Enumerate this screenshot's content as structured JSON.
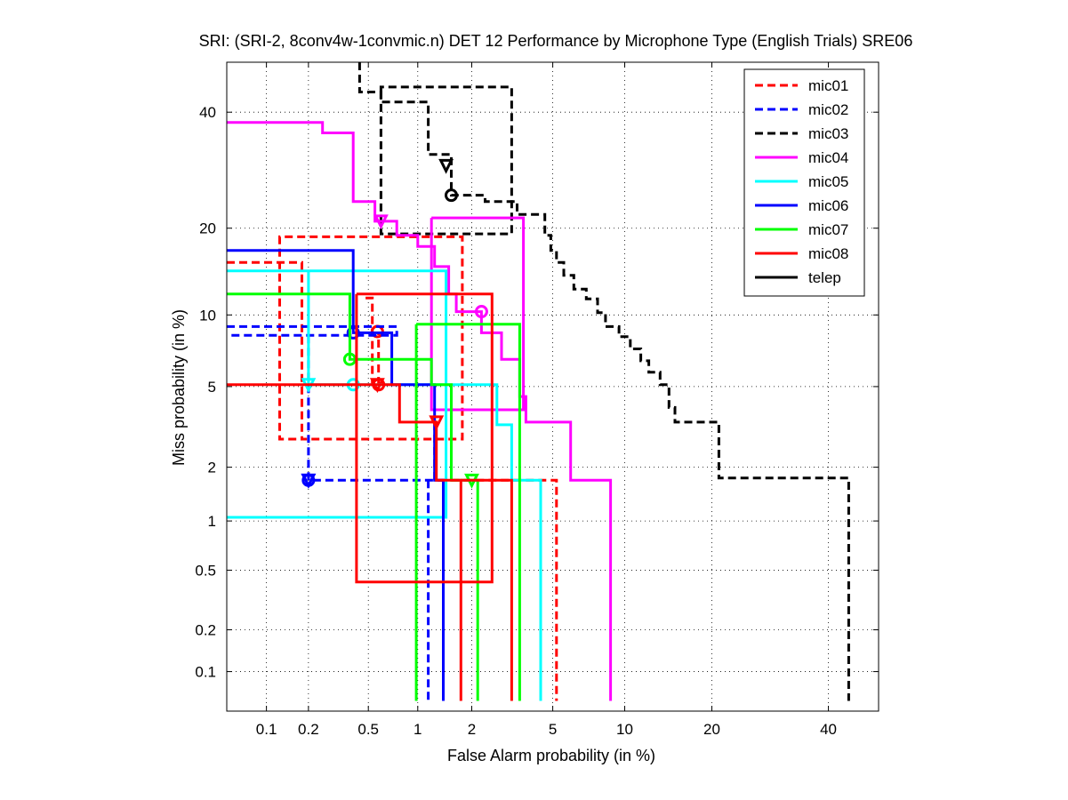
{
  "chart_data": {
    "type": "line",
    "title": "SRI: (SRI-2, 8conv4w-1convmic.n) DET 12 Performance by Microphone Type (English Trials) SRE06",
    "xlabel": "False Alarm probability (in %)",
    "ylabel": "Miss probability (in %)",
    "x_scale": "probit",
    "y_scale": "probit",
    "xlim": [
      0.05,
      50
    ],
    "ylim": [
      0.05,
      50
    ],
    "x_ticks": [
      0.1,
      0.2,
      0.5,
      1,
      2,
      5,
      10,
      20,
      40
    ],
    "x_tick_labels": [
      "0.1",
      "0.2",
      "0.5",
      "1",
      "2",
      "5",
      "10",
      "20",
      "40"
    ],
    "y_ticks": [
      0.1,
      0.2,
      0.5,
      1,
      2,
      5,
      10,
      20,
      40
    ],
    "y_tick_labels": [
      "0.1",
      "0.2",
      "0.5",
      "1",
      "2",
      "5",
      "10",
      "20",
      "40"
    ],
    "grid": true,
    "legend_position": "top-right",
    "series": [
      {
        "name": "mic01",
        "color": "#ff0000",
        "style": "dashed",
        "points": [
          [
            0.05,
            15.5
          ],
          [
            0.18,
            15.5
          ],
          [
            0.18,
            2.7
          ],
          [
            0.19,
            2.7
          ]
        ],
        "ellipse": [
          0.12,
          0.19,
          1.7,
          1.8,
          2.8,
          18.6,
          18.6,
          2.8
        ],
        "ellipse2": [
          0.47,
          0.49,
          0.49,
          0.47,
          11.6,
          11.6,
          0.06,
          0.06
        ],
        "min_dcf": [
          0.57,
          8.6
        ],
        "act_dcf": [
          0.57,
          5.1
        ]
      },
      {
        "name": "mic02",
        "color": "#0000ff",
        "style": "dashed",
        "points": [
          [
            0.05,
            9.0
          ],
          [
            0.05,
            8.3
          ],
          [
            0.2,
            8.3
          ],
          [
            0.2,
            1.7
          ],
          [
            1.15,
            1.7
          ],
          [
            1.15,
            0.06
          ]
        ],
        "min_dcf": [
          0.2,
          1.7
        ],
        "act_dcf": [
          0.2,
          1.7
        ]
      },
      {
        "name": "mic03",
        "color": "#000000",
        "style": "dashed",
        "points": [
          [
            0.05,
            50
          ],
          [
            0.05,
            50
          ]
        ],
        "min_dcf": [
          1.55,
          25.0
        ],
        "act_dcf": [
          1.45,
          30.0
        ]
      },
      {
        "name": "mic04",
        "color": "#ff00ff",
        "style": "solid",
        "points": [],
        "min_dcf": [
          2.25,
          10.3
        ],
        "act_dcf": [
          0.6,
          21.0
        ]
      },
      {
        "name": "mic05",
        "color": "#00ffff",
        "style": "solid",
        "points": [],
        "min_dcf": [
          0.4,
          5.1
        ],
        "act_dcf": [
          0.2,
          5.1
        ]
      },
      {
        "name": "mic06",
        "color": "#0000ff",
        "style": "solid",
        "points": [],
        "min_dcf": [
          0.4,
          8.5
        ],
        "act_dcf": [
          0.2,
          1.7
        ]
      },
      {
        "name": "mic07",
        "color": "#00ff00",
        "style": "solid",
        "points": [],
        "min_dcf": [
          0.38,
          6.6
        ],
        "act_dcf": [
          2.0,
          1.7
        ]
      },
      {
        "name": "mic08",
        "color": "#ff0000",
        "style": "solid",
        "points": [],
        "min_dcf": [
          0.58,
          5.1
        ],
        "act_dcf": [
          1.28,
          3.4
        ]
      },
      {
        "name": "telep",
        "color": "#000000",
        "style": "solid",
        "points": [],
        "min_dcf": null,
        "act_dcf": null
      }
    ]
  }
}
